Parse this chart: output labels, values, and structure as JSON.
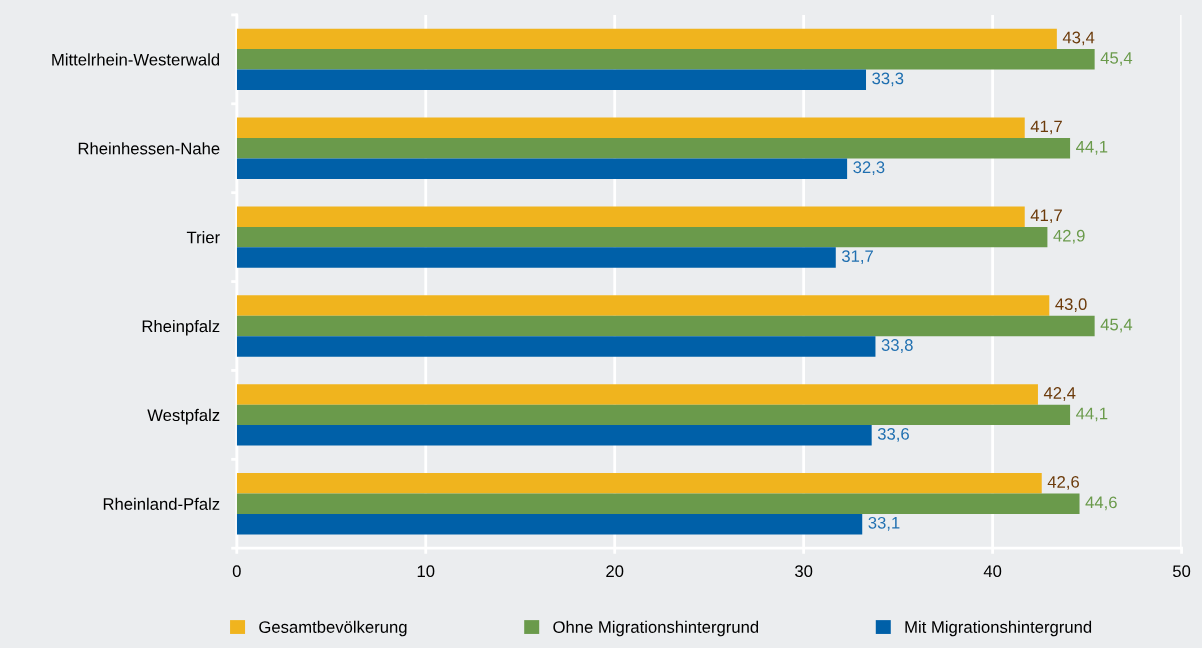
{
  "chart_data": {
    "type": "bar",
    "orientation": "horizontal",
    "categories": [
      "Mittelrhein-Westerwald",
      "Rheinhessen-Nahe",
      "Trier",
      "Rheinpfalz",
      "Westpfalz",
      "Rheinland-Pfalz"
    ],
    "series": [
      {
        "name": "Gesamtbevölkerung",
        "color": "#f0b41e",
        "values": [
          43.4,
          41.7,
          41.7,
          43.0,
          42.4,
          42.6
        ],
        "value_labels": [
          "43,4",
          "41,7",
          "41,7",
          "43,0",
          "42,4",
          "42,6"
        ]
      },
      {
        "name": "Ohne Migrationshintergrund",
        "color": "#6a9a4b",
        "values": [
          45.4,
          44.1,
          42.9,
          45.4,
          44.1,
          44.6
        ],
        "value_labels": [
          "45,4",
          "44,1",
          "42,9",
          "45,4",
          "44,1",
          "44,6"
        ]
      },
      {
        "name": "Mit Migrationshintergrund",
        "color": "#0060a8",
        "values": [
          33.3,
          32.3,
          31.7,
          33.8,
          33.6,
          33.1
        ],
        "value_labels": [
          "33,3",
          "32,3",
          "31,7",
          "33,8",
          "33,6",
          "33,1"
        ]
      }
    ],
    "xlim": [
      0,
      50
    ],
    "xticks": [
      0,
      10,
      20,
      30,
      40,
      50
    ],
    "grid": "x",
    "legend": "bottom"
  }
}
